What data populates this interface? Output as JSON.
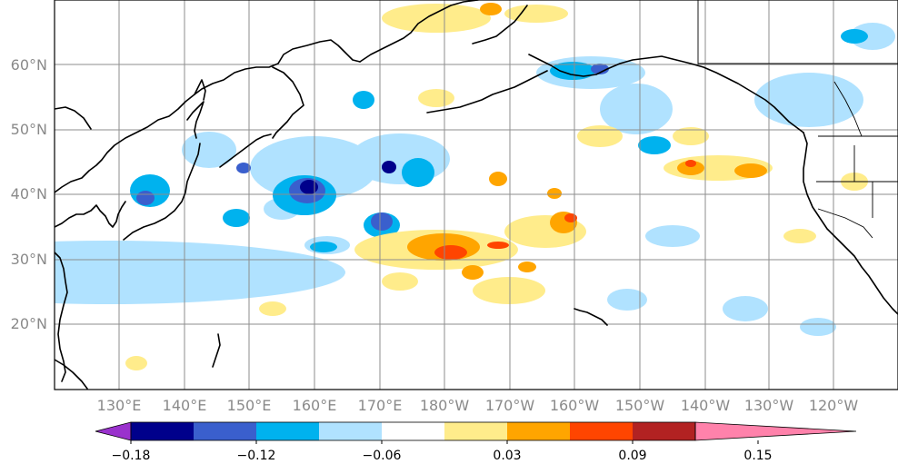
{
  "map": {
    "latitudes": [
      "20°N",
      "30°N",
      "40°N",
      "50°N",
      "60°N"
    ],
    "longitudes": [
      "130°E",
      "140°E",
      "150°E",
      "160°E",
      "170°E",
      "180°W",
      "170°W",
      "160°W",
      "150°W",
      "140°W",
      "130°W",
      "120°W"
    ]
  },
  "colorbar": {
    "colors": [
      "#9a32cd",
      "#00008b",
      "#3a5fcd",
      "#00b2ee",
      "#b0e2ff",
      "#ffffff",
      "#ffec8b",
      "#ffa500",
      "#ff4500",
      "#b22222",
      "#ff82ab"
    ],
    "tick_labels": [
      "−0.18",
      "−0.12",
      "−0.06",
      "0.03",
      "0.09",
      "0.15"
    ]
  }
}
